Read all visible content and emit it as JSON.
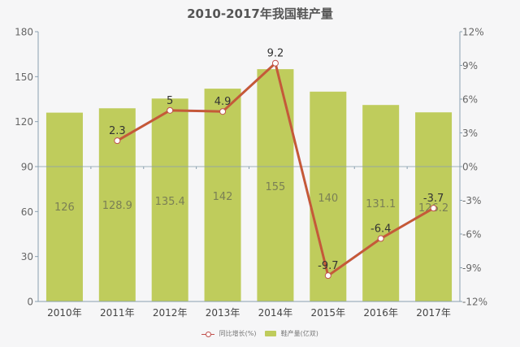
{
  "title": "2010-2017年我国鞋产量",
  "legend": {
    "line_label": "同比增长(%)",
    "bar_label": "鞋产量(亿双)"
  },
  "colors": {
    "bar": "#bfcc5c",
    "line": "#c0504d",
    "line_inner": "#c8602a",
    "axis": "#8aa0b0",
    "label": "#666666",
    "bar_label": "#7a7f55"
  },
  "chart_data": {
    "type": "bar+line",
    "title": "2010-2017年我国鞋产量",
    "categories": [
      "2010年",
      "2011年",
      "2012年",
      "2013年",
      "2014年",
      "2015年",
      "2016年",
      "2017年"
    ],
    "series": [
      {
        "name": "鞋产量(亿双)",
        "type": "bar",
        "axis": "left",
        "values": [
          126,
          128.9,
          135.4,
          142,
          155,
          140,
          131.1,
          126.2
        ]
      },
      {
        "name": "同比增长(%)",
        "type": "line",
        "axis": "right",
        "values": [
          null,
          2.3,
          5,
          4.9,
          9.2,
          -9.7,
          -6.4,
          -3.7
        ]
      }
    ],
    "left_axis": {
      "ticks": [
        "0",
        "30",
        "60",
        "90",
        "120",
        "150",
        "180"
      ],
      "ylim": [
        0,
        180
      ]
    },
    "right_axis": {
      "ticks": [
        "-12%",
        "-9%",
        "-6%",
        "-3%",
        "0%",
        "3%",
        "6%",
        "9%",
        "12%"
      ],
      "ylim": [
        -12,
        12
      ]
    },
    "legend_position": "bottom",
    "grid": false
  }
}
